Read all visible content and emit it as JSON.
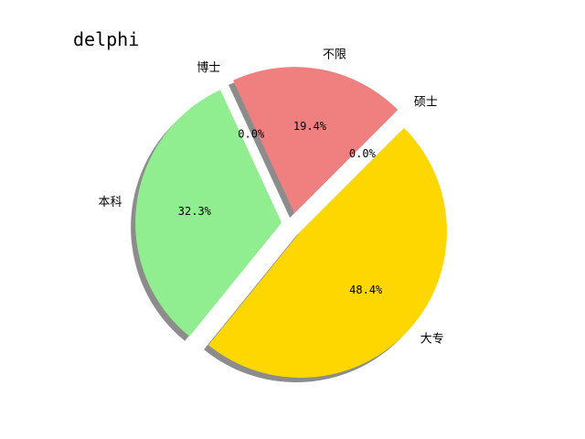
{
  "chart_data": {
    "type": "pie",
    "title": "delphi",
    "categories": [
      "不限",
      "博士",
      "本科",
      "大专",
      "硕士"
    ],
    "values": [
      19.4,
      0.0,
      32.3,
      48.4,
      0.0
    ],
    "labels": [
      "19.4%",
      "0.0%",
      "32.3%",
      "48.4%",
      "0.0%"
    ],
    "colors": [
      "#f08080",
      "#f08080",
      "#90ee90",
      "#ffd700",
      "#f08080"
    ],
    "exploded": true,
    "shadow": true,
    "grid": false,
    "legend": "none"
  }
}
